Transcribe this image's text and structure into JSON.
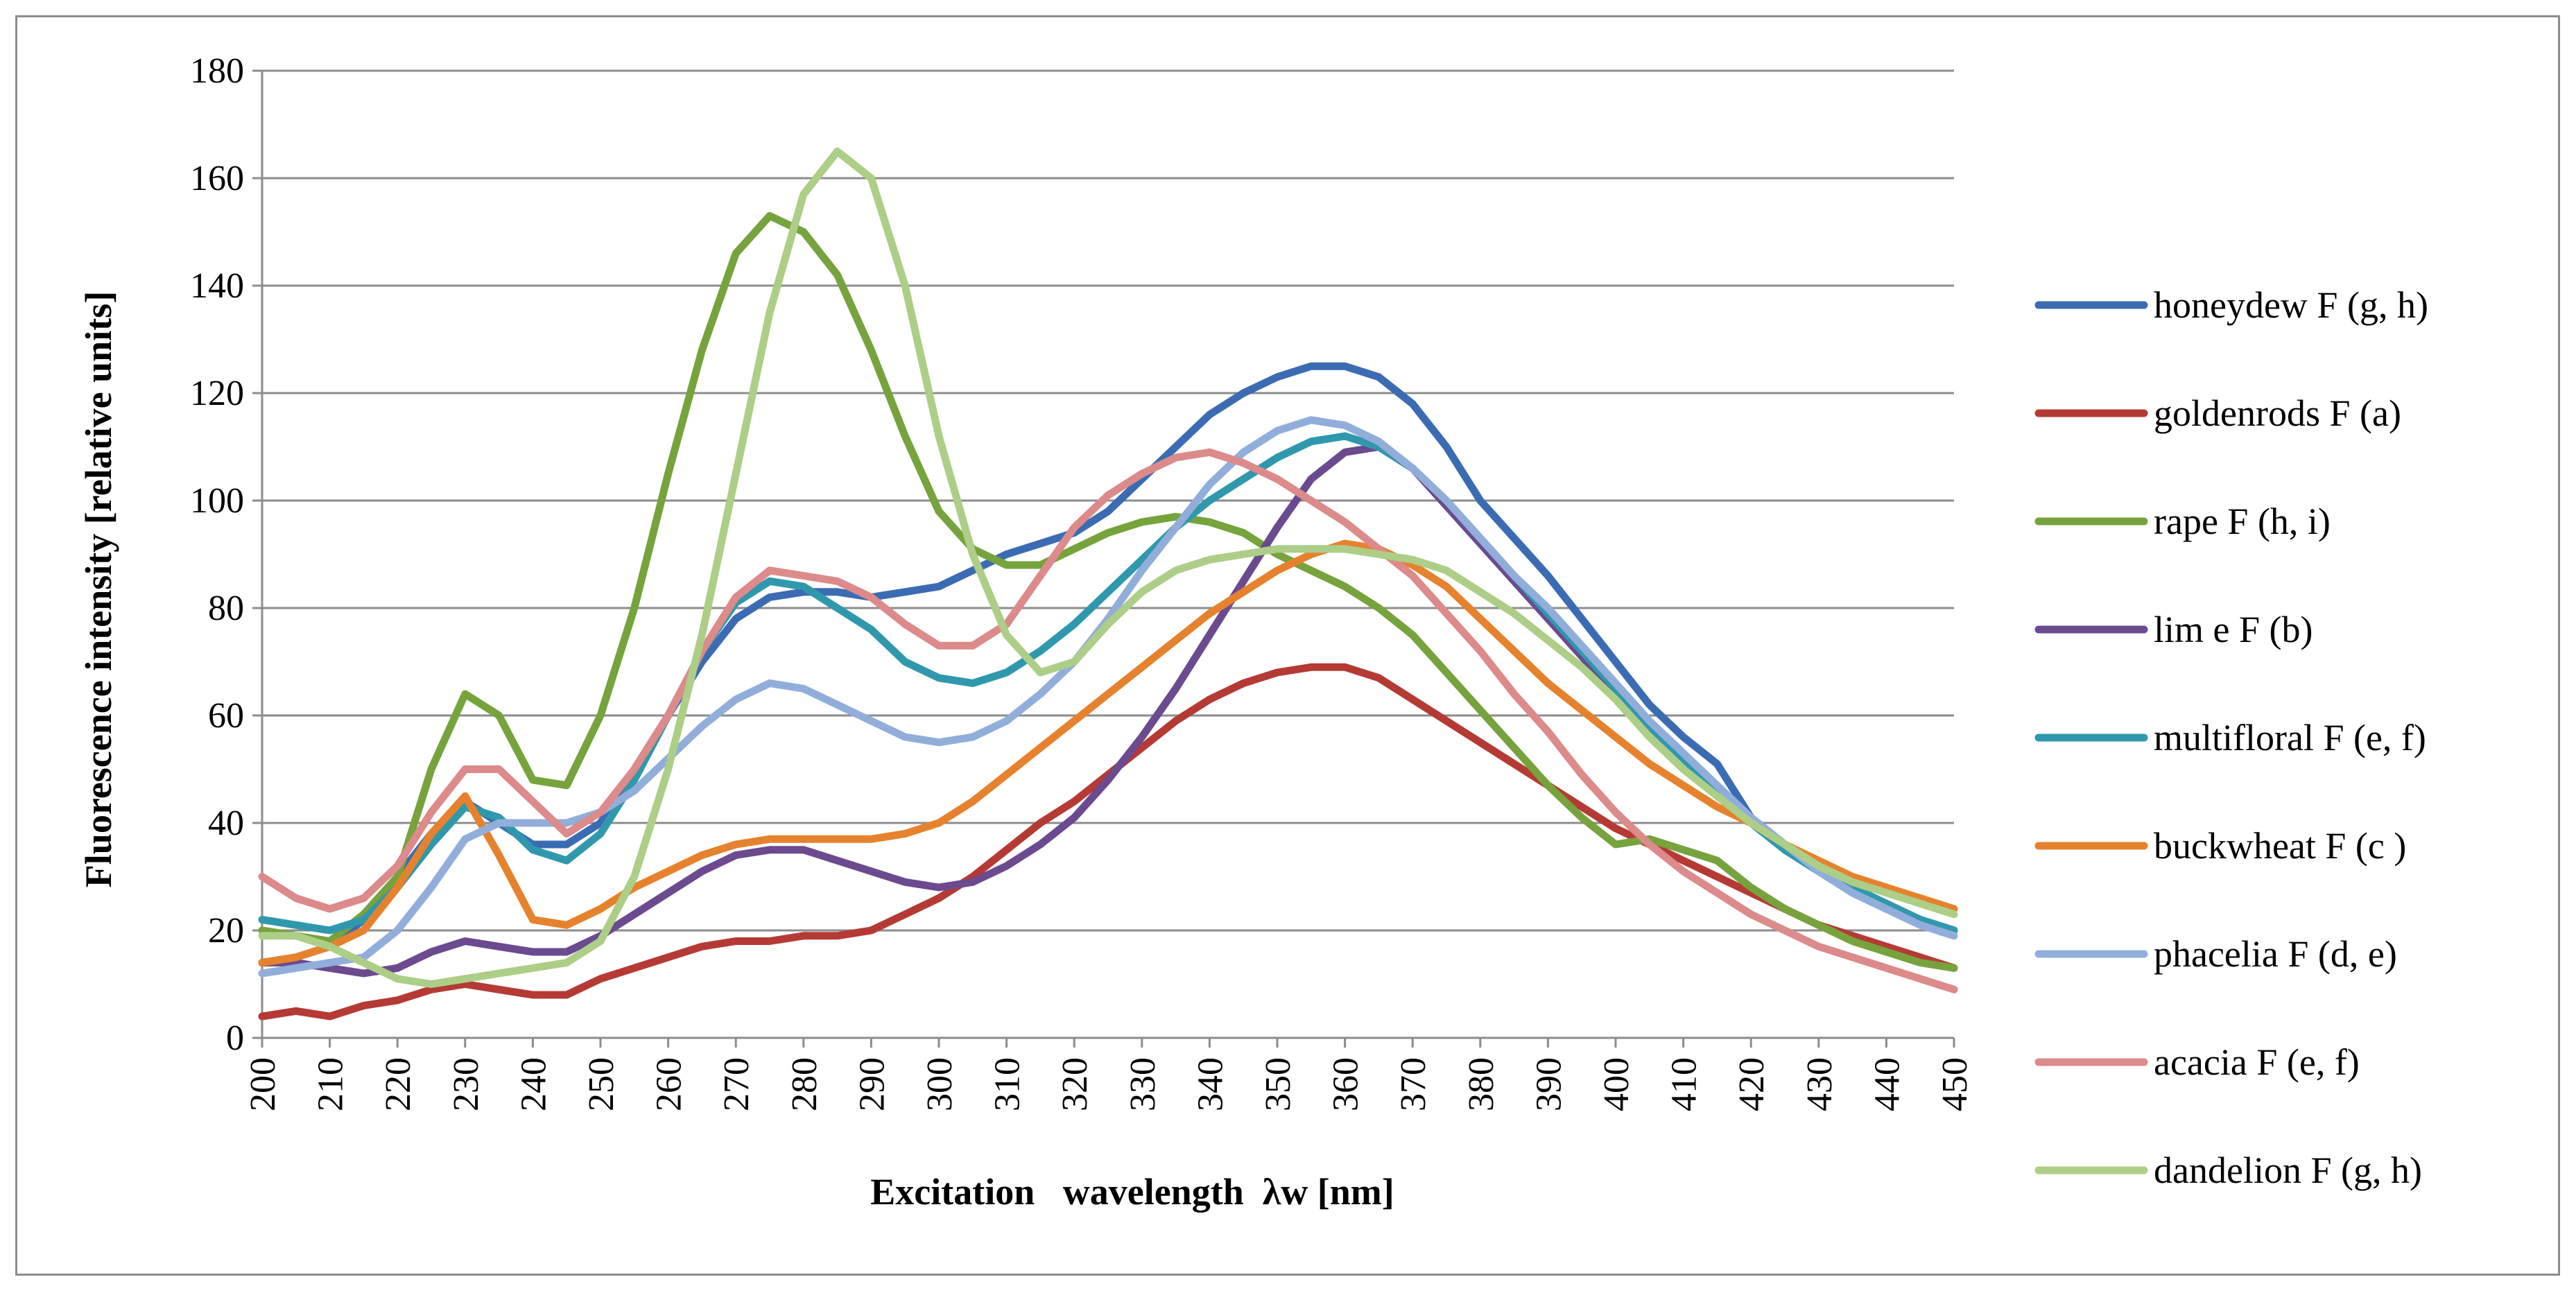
{
  "chart_data": {
    "type": "line",
    "title": "",
    "xlabel": "Excitation   wavelength  λw [nm]",
    "ylabel": "Fluorescence intensity [relative units]",
    "xlim": [
      200,
      450
    ],
    "ylim": [
      0,
      180
    ],
    "yticks": [
      0,
      20,
      40,
      60,
      80,
      100,
      120,
      140,
      160,
      180
    ],
    "xticks": [
      200,
      210,
      220,
      230,
      240,
      250,
      260,
      270,
      280,
      290,
      300,
      310,
      320,
      330,
      340,
      350,
      360,
      370,
      380,
      390,
      400,
      410,
      420,
      430,
      440,
      450
    ],
    "grid": true,
    "legend_position": "right",
    "x": [
      200,
      205,
      210,
      215,
      220,
      225,
      230,
      235,
      240,
      245,
      250,
      255,
      260,
      265,
      270,
      275,
      280,
      285,
      290,
      295,
      300,
      305,
      310,
      315,
      320,
      325,
      330,
      335,
      340,
      345,
      350,
      355,
      360,
      365,
      370,
      375,
      380,
      385,
      390,
      395,
      400,
      405,
      410,
      415,
      420,
      425,
      430,
      435,
      440,
      445,
      450
    ],
    "series": [
      {
        "name": "honeydew F (g, h)",
        "color": "#3b6cb3",
        "values": [
          14,
          15,
          17,
          22,
          30,
          38,
          44,
          40,
          36,
          36,
          40,
          50,
          60,
          70,
          78,
          82,
          83,
          83,
          82,
          83,
          84,
          87,
          90,
          92,
          94,
          98,
          104,
          110,
          116,
          120,
          123,
          125,
          125,
          123,
          118,
          110,
          100,
          93,
          86,
          78,
          70,
          62,
          56,
          51,
          41,
          36,
          31,
          27,
          24,
          22,
          20
        ]
      },
      {
        "name": "goldenrods F (a)",
        "color": "#b53a34",
        "values": [
          4,
          5,
          4,
          6,
          7,
          9,
          10,
          9,
          8,
          8,
          11,
          13,
          15,
          17,
          18,
          18,
          19,
          19,
          20,
          23,
          26,
          30,
          35,
          40,
          44,
          49,
          54,
          59,
          63,
          66,
          68,
          69,
          69,
          67,
          63,
          59,
          55,
          51,
          47,
          43,
          39,
          36,
          33,
          30,
          27,
          24,
          21,
          19,
          17,
          15,
          13
        ]
      },
      {
        "name": "rape F (h, i)",
        "color": "#76a33c",
        "values": [
          20,
          19,
          18,
          23,
          30,
          50,
          64,
          60,
          48,
          47,
          60,
          80,
          105,
          128,
          146,
          153,
          150,
          142,
          128,
          112,
          98,
          91,
          88,
          88,
          91,
          94,
          96,
          97,
          96,
          94,
          90,
          87,
          84,
          80,
          75,
          68,
          61,
          54,
          47,
          41,
          36,
          37,
          35,
          33,
          28,
          24,
          21,
          18,
          16,
          14,
          13
        ]
      },
      {
        "name": "lim e F (b)",
        "color": "#6b4a90",
        "values": [
          14,
          14,
          13,
          12,
          13,
          16,
          18,
          17,
          16,
          16,
          19,
          23,
          27,
          31,
          34,
          35,
          35,
          33,
          31,
          29,
          28,
          29,
          32,
          36,
          41,
          48,
          56,
          65,
          75,
          85,
          95,
          104,
          109,
          110,
          106,
          99,
          92,
          85,
          78,
          71,
          64,
          58,
          52,
          46,
          41,
          36,
          32,
          28,
          25,
          22,
          20
        ]
      },
      {
        "name": "multifloral F (e, f)",
        "color": "#2f98ad",
        "values": [
          22,
          21,
          20,
          22,
          28,
          36,
          43,
          41,
          35,
          33,
          38,
          48,
          60,
          72,
          81,
          85,
          84,
          80,
          76,
          70,
          67,
          66,
          68,
          72,
          77,
          83,
          89,
          95,
          100,
          104,
          108,
          111,
          112,
          110,
          106,
          100,
          93,
          86,
          79,
          72,
          65,
          58,
          52,
          46,
          40,
          35,
          31,
          28,
          25,
          22,
          20
        ]
      },
      {
        "name": "buckwheat F (c )",
        "color": "#e6822d",
        "values": [
          14,
          15,
          17,
          20,
          28,
          38,
          45,
          34,
          22,
          21,
          24,
          28,
          31,
          34,
          36,
          37,
          37,
          37,
          37,
          38,
          40,
          44,
          49,
          54,
          59,
          64,
          69,
          74,
          79,
          83,
          87,
          90,
          92,
          91,
          88,
          84,
          78,
          72,
          66,
          61,
          56,
          51,
          47,
          43,
          40,
          36,
          33,
          30,
          28,
          26,
          24
        ]
      },
      {
        "name": "phacelia F (d, e)",
        "color": "#91aedb",
        "values": [
          12,
          13,
          14,
          15,
          20,
          28,
          37,
          40,
          40,
          40,
          42,
          46,
          52,
          58,
          63,
          66,
          65,
          62,
          59,
          56,
          55,
          56,
          59,
          64,
          70,
          78,
          87,
          95,
          103,
          109,
          113,
          115,
          114,
          111,
          106,
          100,
          93,
          86,
          80,
          73,
          66,
          59,
          53,
          47,
          41,
          36,
          31,
          27,
          24,
          21,
          19
        ]
      },
      {
        "name": "acacia F (e, f)",
        "color": "#dc8a8a",
        "values": [
          30,
          26,
          24,
          26,
          32,
          42,
          50,
          50,
          44,
          38,
          42,
          50,
          60,
          72,
          82,
          87,
          86,
          85,
          82,
          77,
          73,
          73,
          77,
          86,
          95,
          101,
          105,
          108,
          109,
          107,
          104,
          100,
          96,
          91,
          86,
          79,
          72,
          64,
          57,
          49,
          42,
          36,
          31,
          27,
          23,
          20,
          17,
          15,
          13,
          11,
          9
        ]
      },
      {
        "name": "dandelion F (g, h)",
        "color": "#acce86",
        "values": [
          19,
          19,
          17,
          14,
          11,
          10,
          11,
          12,
          13,
          14,
          18,
          30,
          50,
          75,
          105,
          135,
          157,
          165,
          160,
          140,
          112,
          90,
          75,
          68,
          70,
          77,
          83,
          87,
          89,
          90,
          91,
          91,
          91,
          90,
          89,
          87,
          83,
          79,
          74,
          69,
          63,
          56,
          50,
          45,
          40,
          36,
          32,
          29,
          27,
          25,
          23
        ]
      }
    ]
  }
}
